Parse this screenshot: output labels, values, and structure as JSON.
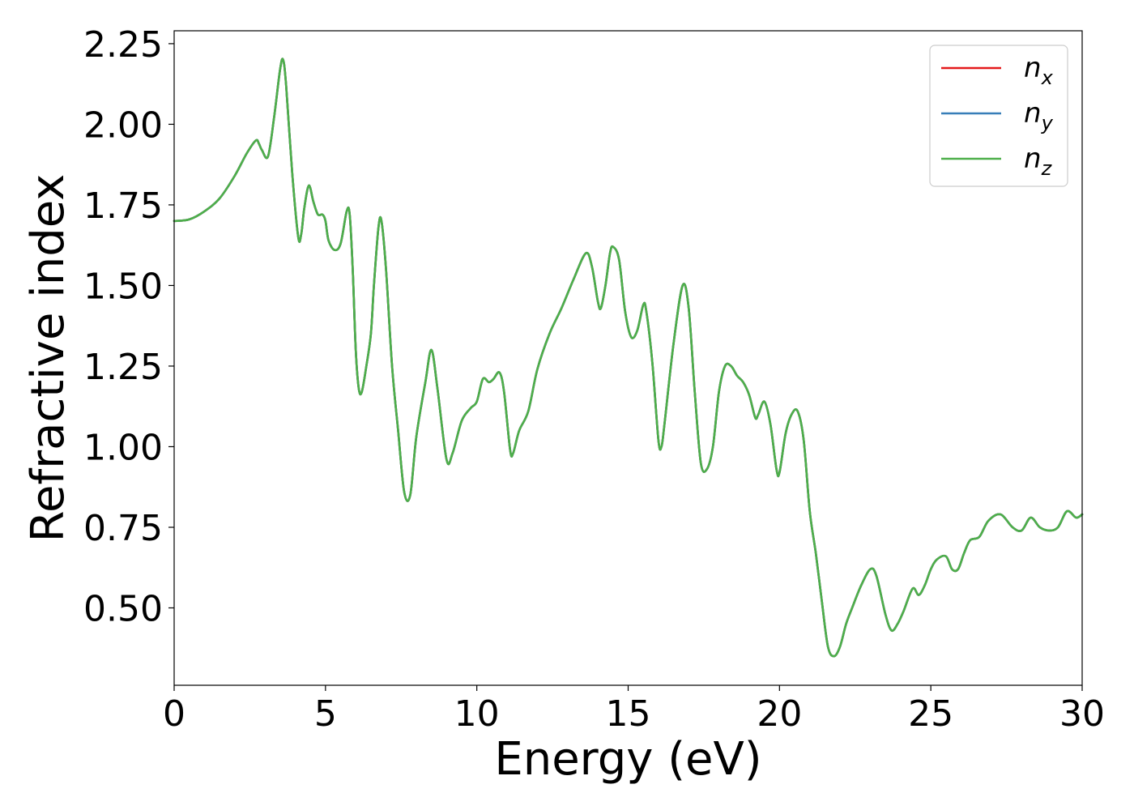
{
  "chart_data": {
    "type": "line",
    "xlabel": "Energy (eV)",
    "ylabel": "Refractive index",
    "xlim": [
      0,
      30
    ],
    "ylim": [
      0.26,
      2.29
    ],
    "xticks": [
      "0",
      "5",
      "10",
      "15",
      "20",
      "25",
      "30"
    ],
    "xtick_values": [
      0,
      5,
      10,
      15,
      20,
      25,
      30
    ],
    "yticks": [
      "0.50",
      "0.75",
      "1.00",
      "1.25",
      "1.50",
      "1.75",
      "2.00",
      "2.25"
    ],
    "ytick_values": [
      0.5,
      0.75,
      1.0,
      1.25,
      1.5,
      1.75,
      2.0,
      2.25
    ],
    "grid": false,
    "legend_position": "top-right",
    "x": [
      0,
      0.5,
      1,
      1.5,
      2,
      2.4,
      2.7,
      2.8,
      2.9,
      3.1,
      3.3,
      3.5,
      3.6,
      3.7,
      3.9,
      4.1,
      4.2,
      4.3,
      4.45,
      4.6,
      4.75,
      4.9,
      5.0,
      5.1,
      5.3,
      5.5,
      5.7,
      5.8,
      5.9,
      6.0,
      6.1,
      6.2,
      6.35,
      6.5,
      6.6,
      6.75,
      6.85,
      7.0,
      7.2,
      7.4,
      7.6,
      7.8,
      8.0,
      8.3,
      8.5,
      8.7,
      9.0,
      9.2,
      9.5,
      9.8,
      10.0,
      10.2,
      10.4,
      10.55,
      10.75,
      10.9,
      11.1,
      11.2,
      11.4,
      11.7,
      12.0,
      12.4,
      12.8,
      13.2,
      13.6,
      13.8,
      14.0,
      14.1,
      14.25,
      14.4,
      14.5,
      14.7,
      14.9,
      15.1,
      15.3,
      15.5,
      15.6,
      15.8,
      16.0,
      16.1,
      16.2,
      16.5,
      16.8,
      17.0,
      17.2,
      17.4,
      17.6,
      17.8,
      18.0,
      18.2,
      18.4,
      18.6,
      18.8,
      19.0,
      19.2,
      19.3,
      19.5,
      19.7,
      19.9,
      20.0,
      20.2,
      20.4,
      20.6,
      20.8,
      21.0,
      21.2,
      21.4,
      21.6,
      21.8,
      22.0,
      22.2,
      22.4,
      22.7,
      23.0,
      23.2,
      23.5,
      23.7,
      23.9,
      24.1,
      24.4,
      24.6,
      24.8,
      25.0,
      25.2,
      25.5,
      25.7,
      25.9,
      26.1,
      26.3,
      26.6,
      26.9,
      27.3,
      27.7,
      28.0,
      28.3,
      28.6,
      28.9,
      29.2,
      29.5,
      29.8,
      30.0
    ],
    "series": [
      {
        "name": "n_x",
        "label_base": "n",
        "label_sub": "x",
        "color": "#e41a1c",
        "values": [
          1.7,
          1.705,
          1.73,
          1.77,
          1.84,
          1.91,
          1.95,
          1.94,
          1.92,
          1.9,
          2.02,
          2.17,
          2.2,
          2.12,
          1.85,
          1.65,
          1.66,
          1.74,
          1.81,
          1.76,
          1.72,
          1.72,
          1.7,
          1.64,
          1.61,
          1.63,
          1.73,
          1.72,
          1.55,
          1.3,
          1.18,
          1.17,
          1.25,
          1.35,
          1.5,
          1.68,
          1.7,
          1.55,
          1.25,
          1.05,
          0.86,
          0.85,
          1.03,
          1.2,
          1.3,
          1.18,
          0.96,
          0.98,
          1.08,
          1.12,
          1.14,
          1.21,
          1.2,
          1.21,
          1.23,
          1.17,
          0.99,
          0.98,
          1.05,
          1.11,
          1.24,
          1.35,
          1.43,
          1.52,
          1.6,
          1.56,
          1.45,
          1.43,
          1.5,
          1.6,
          1.62,
          1.58,
          1.42,
          1.34,
          1.36,
          1.44,
          1.42,
          1.26,
          1.02,
          1.0,
          1.07,
          1.32,
          1.5,
          1.43,
          1.17,
          0.95,
          0.93,
          1.0,
          1.17,
          1.25,
          1.25,
          1.22,
          1.2,
          1.16,
          1.09,
          1.1,
          1.14,
          1.07,
          0.93,
          0.92,
          1.04,
          1.1,
          1.11,
          1.02,
          0.8,
          0.67,
          0.52,
          0.38,
          0.35,
          0.38,
          0.45,
          0.5,
          0.57,
          0.62,
          0.6,
          0.48,
          0.43,
          0.45,
          0.49,
          0.56,
          0.54,
          0.57,
          0.62,
          0.65,
          0.66,
          0.62,
          0.62,
          0.67,
          0.71,
          0.72,
          0.77,
          0.79,
          0.75,
          0.74,
          0.78,
          0.75,
          0.74,
          0.75,
          0.8,
          0.78,
          0.79
        ]
      },
      {
        "name": "n_y",
        "label_base": "n",
        "label_sub": "y",
        "color": "#377eb8",
        "values": [
          1.7,
          1.705,
          1.73,
          1.77,
          1.84,
          1.91,
          1.95,
          1.94,
          1.92,
          1.9,
          2.02,
          2.17,
          2.2,
          2.12,
          1.85,
          1.65,
          1.66,
          1.74,
          1.81,
          1.76,
          1.72,
          1.72,
          1.7,
          1.64,
          1.61,
          1.63,
          1.73,
          1.72,
          1.55,
          1.3,
          1.18,
          1.17,
          1.25,
          1.35,
          1.5,
          1.68,
          1.7,
          1.55,
          1.25,
          1.05,
          0.86,
          0.85,
          1.03,
          1.2,
          1.3,
          1.18,
          0.96,
          0.98,
          1.08,
          1.12,
          1.14,
          1.21,
          1.2,
          1.21,
          1.23,
          1.17,
          0.99,
          0.98,
          1.05,
          1.11,
          1.24,
          1.35,
          1.43,
          1.52,
          1.6,
          1.56,
          1.45,
          1.43,
          1.5,
          1.6,
          1.62,
          1.58,
          1.42,
          1.34,
          1.36,
          1.44,
          1.42,
          1.26,
          1.02,
          1.0,
          1.07,
          1.32,
          1.5,
          1.43,
          1.17,
          0.95,
          0.93,
          1.0,
          1.17,
          1.25,
          1.25,
          1.22,
          1.2,
          1.16,
          1.09,
          1.1,
          1.14,
          1.07,
          0.93,
          0.92,
          1.04,
          1.1,
          1.11,
          1.02,
          0.8,
          0.67,
          0.52,
          0.38,
          0.35,
          0.38,
          0.45,
          0.5,
          0.57,
          0.62,
          0.6,
          0.48,
          0.43,
          0.45,
          0.49,
          0.56,
          0.54,
          0.57,
          0.62,
          0.65,
          0.66,
          0.62,
          0.62,
          0.67,
          0.71,
          0.72,
          0.77,
          0.79,
          0.75,
          0.74,
          0.78,
          0.75,
          0.74,
          0.75,
          0.8,
          0.78,
          0.79
        ]
      },
      {
        "name": "n_z",
        "label_base": "n",
        "label_sub": "z",
        "color": "#4daf4a",
        "values": [
          1.7,
          1.705,
          1.73,
          1.77,
          1.84,
          1.91,
          1.95,
          1.94,
          1.92,
          1.9,
          2.02,
          2.17,
          2.2,
          2.12,
          1.85,
          1.65,
          1.66,
          1.74,
          1.81,
          1.76,
          1.72,
          1.72,
          1.7,
          1.64,
          1.61,
          1.63,
          1.73,
          1.72,
          1.55,
          1.3,
          1.18,
          1.17,
          1.25,
          1.35,
          1.5,
          1.68,
          1.7,
          1.55,
          1.25,
          1.05,
          0.86,
          0.85,
          1.03,
          1.2,
          1.3,
          1.18,
          0.96,
          0.98,
          1.08,
          1.12,
          1.14,
          1.21,
          1.2,
          1.21,
          1.23,
          1.17,
          0.99,
          0.98,
          1.05,
          1.11,
          1.24,
          1.35,
          1.43,
          1.52,
          1.6,
          1.56,
          1.45,
          1.43,
          1.5,
          1.6,
          1.62,
          1.58,
          1.42,
          1.34,
          1.36,
          1.44,
          1.42,
          1.26,
          1.02,
          1.0,
          1.07,
          1.32,
          1.5,
          1.43,
          1.17,
          0.95,
          0.93,
          1.0,
          1.17,
          1.25,
          1.25,
          1.22,
          1.2,
          1.16,
          1.09,
          1.1,
          1.14,
          1.07,
          0.93,
          0.92,
          1.04,
          1.1,
          1.11,
          1.02,
          0.8,
          0.67,
          0.52,
          0.38,
          0.35,
          0.38,
          0.45,
          0.5,
          0.57,
          0.62,
          0.6,
          0.48,
          0.43,
          0.45,
          0.49,
          0.56,
          0.54,
          0.57,
          0.62,
          0.65,
          0.66,
          0.62,
          0.62,
          0.67,
          0.71,
          0.72,
          0.77,
          0.79,
          0.75,
          0.74,
          0.78,
          0.75,
          0.74,
          0.75,
          0.8,
          0.78,
          0.79
        ]
      }
    ]
  }
}
